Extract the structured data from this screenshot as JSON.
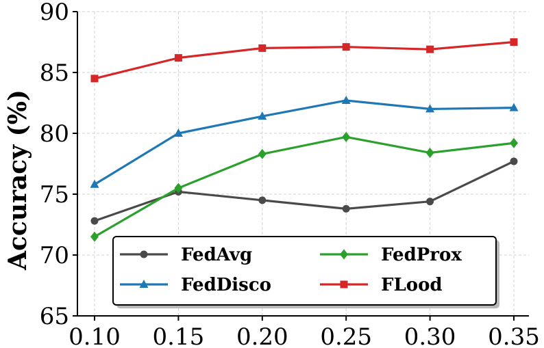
{
  "chart_data": {
    "type": "line",
    "title": "",
    "xlabel": "",
    "ylabel": "Accuracy (%)",
    "x": [
      0.1,
      0.15,
      0.2,
      0.25,
      0.3,
      0.35
    ],
    "x_tick_labels": [
      "0.10",
      "0.15",
      "0.20",
      "0.25",
      "0.30",
      "0.35"
    ],
    "y_ticks": [
      65,
      70,
      75,
      80,
      85,
      90
    ],
    "ylim": [
      65,
      90
    ],
    "grid": true,
    "legend_position": "bottom-center",
    "series": [
      {
        "name": "FedAvg",
        "color": "#4a4a4a",
        "marker": "circle",
        "values": [
          72.8,
          75.2,
          74.5,
          73.8,
          74.4,
          77.7
        ]
      },
      {
        "name": "FedDisco",
        "color": "#1f77b4",
        "marker": "triangle",
        "values": [
          75.8,
          80.0,
          81.4,
          82.7,
          82.0,
          82.1
        ]
      },
      {
        "name": "FedProx",
        "color": "#2ca02c",
        "marker": "diamond",
        "values": [
          71.5,
          75.5,
          78.3,
          79.7,
          78.4,
          79.2
        ]
      },
      {
        "name": "FLood",
        "color": "#d62728",
        "marker": "square",
        "values": [
          84.5,
          86.2,
          87.0,
          87.1,
          86.9,
          87.5
        ]
      }
    ]
  }
}
